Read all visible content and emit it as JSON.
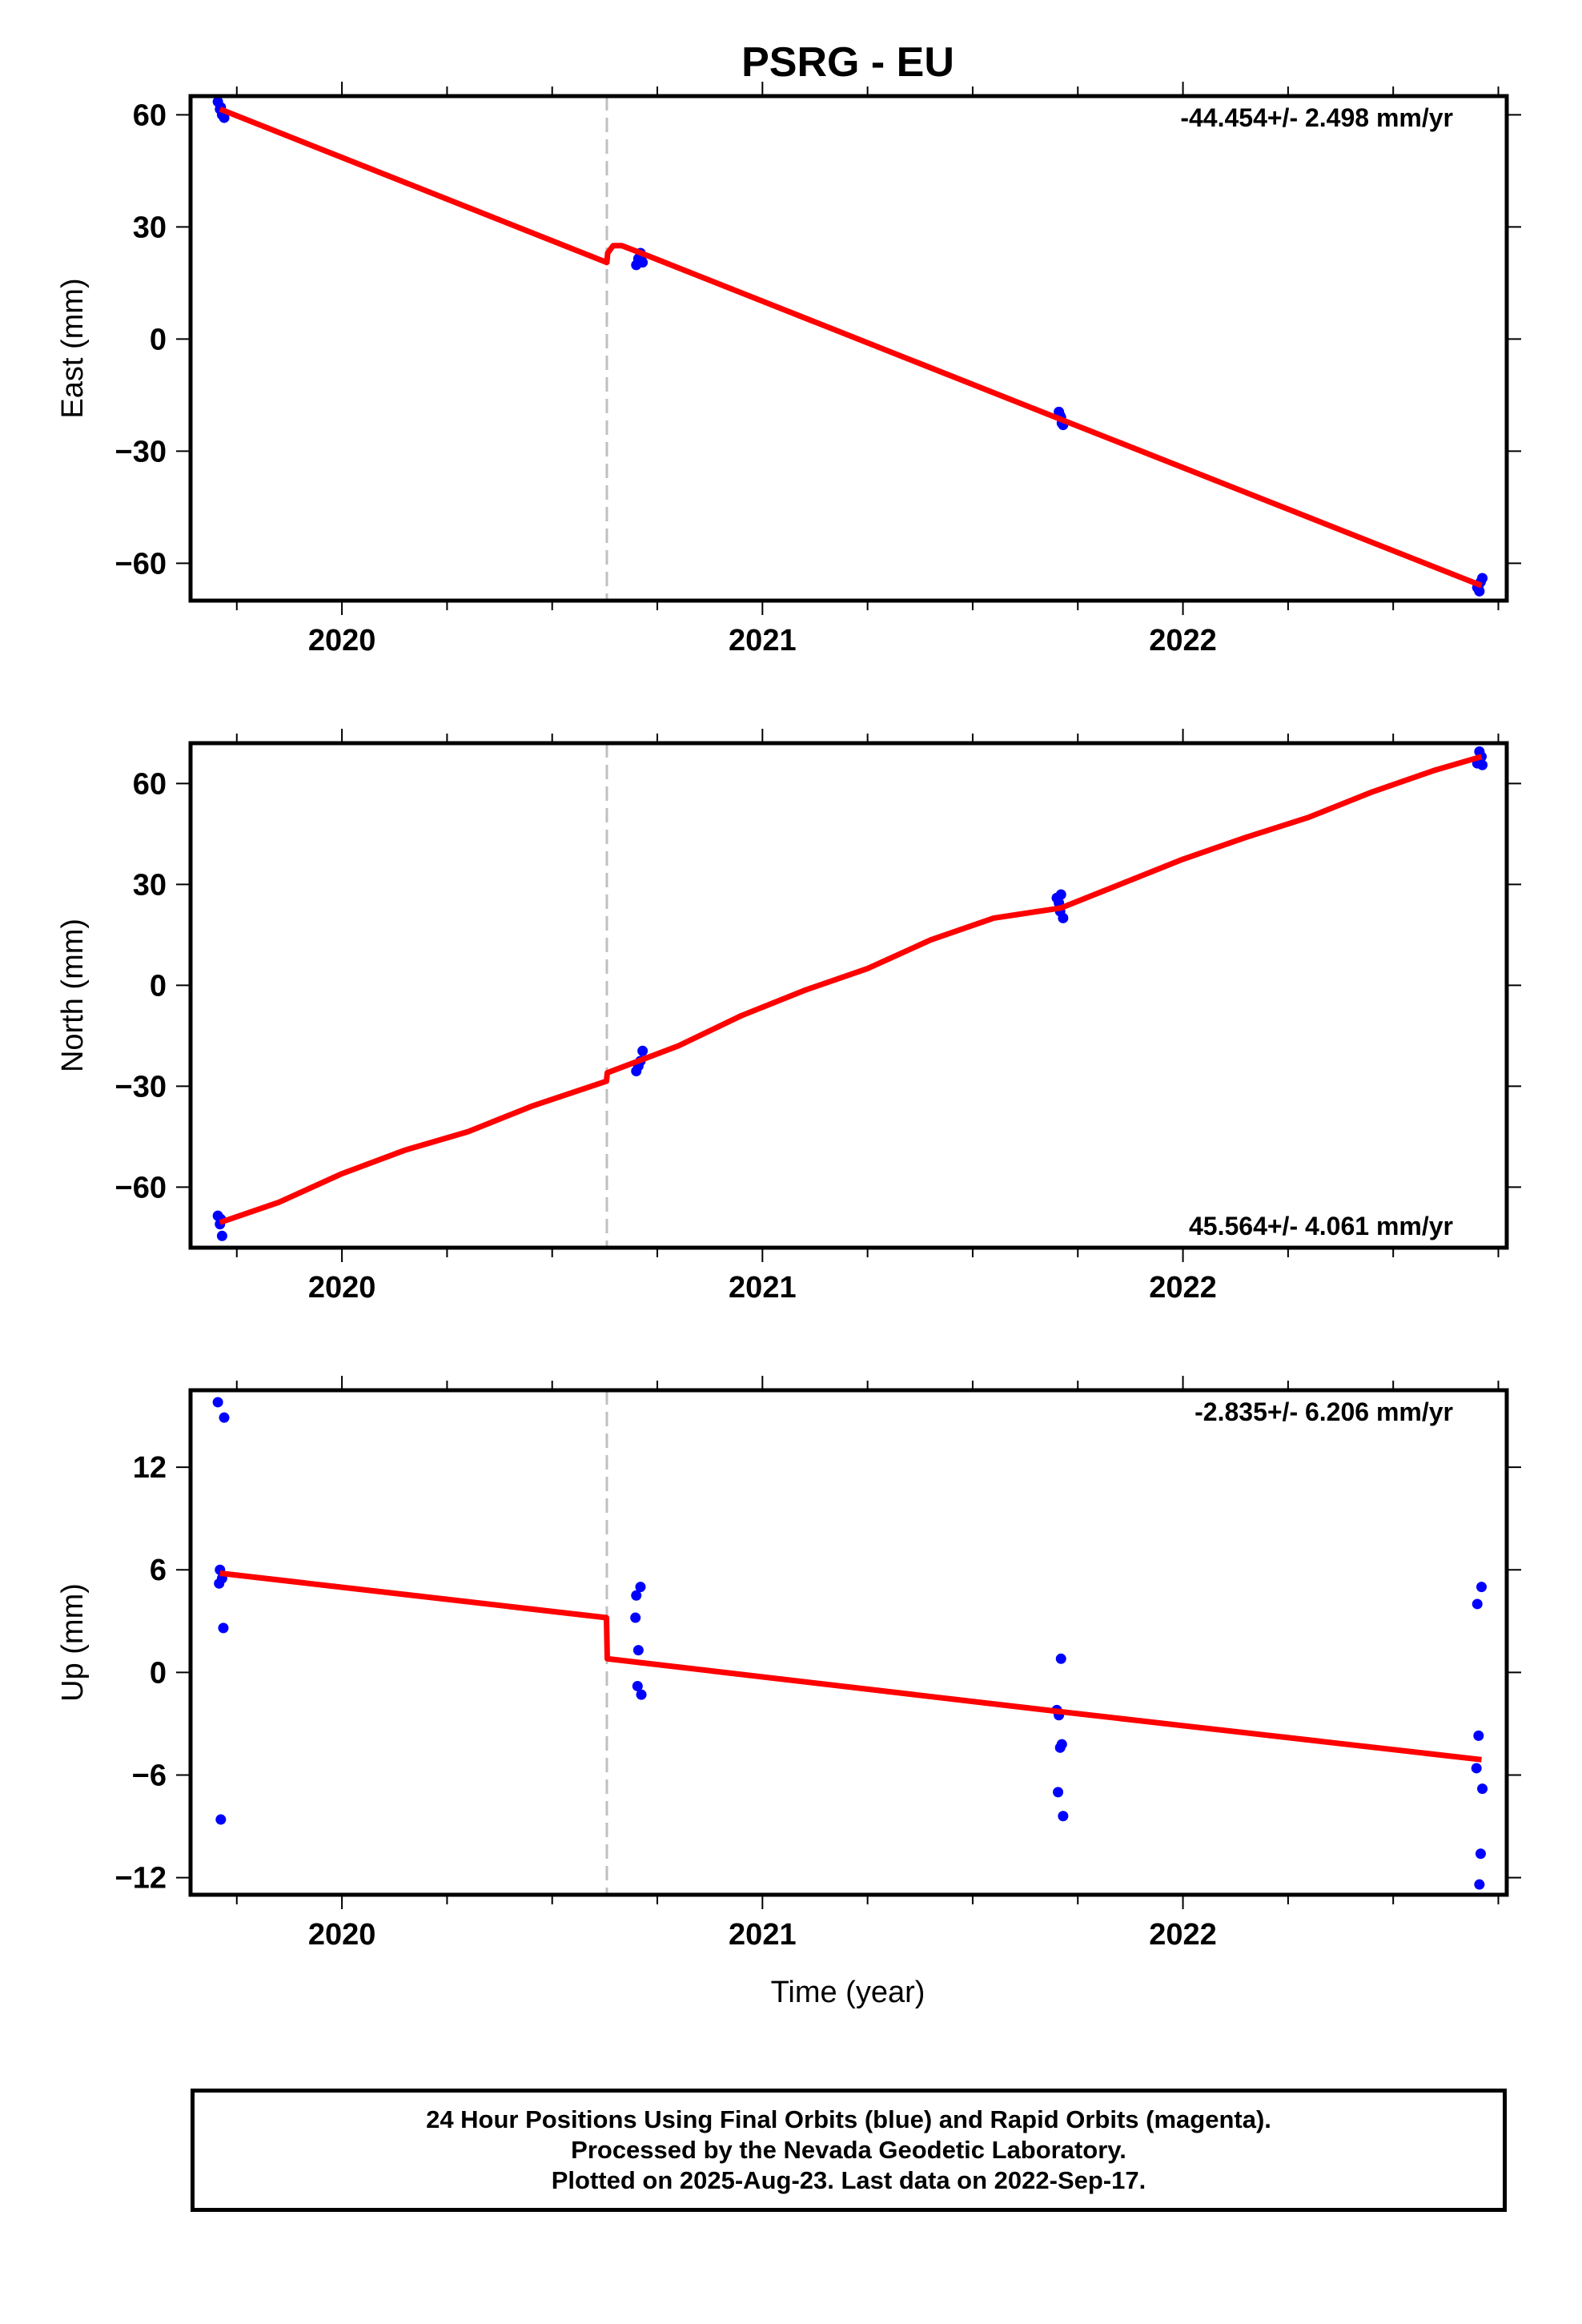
{
  "title": "PSRG - EU",
  "xlabel": "Time (year)",
  "colors": {
    "final_orbits": "#0000ff",
    "model": "#ff0000",
    "offset_line": "#bfbfbf"
  },
  "footer": {
    "line1": "24 Hour Positions Using Final Orbits (blue) and Rapid Orbits (magenta).",
    "line2": "Processed by the Nevada Geodetic Laboratory.",
    "line3": "Plotted on 2025-Aug-23. Last data on 2022-Sep-17."
  },
  "chart_data": [
    {
      "type": "scatter",
      "name": "east",
      "ylabel": "East (mm)",
      "rate_label": "-44.454+/- 2.498 mm/yr",
      "rate_position": "top-right",
      "xlim": [
        2019.64,
        2022.77
      ],
      "ylim": [
        -70,
        65
      ],
      "xticks": [
        2020,
        2021,
        2022
      ],
      "xtick_labels": [
        "2020",
        "2021",
        "2022"
      ],
      "yticks": [
        -60,
        -30,
        0,
        30,
        60
      ],
      "ytick_labels": [
        "−60",
        "−30",
        "0",
        "30",
        "60"
      ],
      "offset_epoch": 2020.63,
      "points": [
        [
          2019.705,
          63.5
        ],
        [
          2019.71,
          61.5
        ],
        [
          2019.715,
          60.0
        ],
        [
          2019.72,
          59.2
        ],
        [
          2019.712,
          62.0
        ],
        [
          2020.7,
          19.8
        ],
        [
          2020.705,
          21.5
        ],
        [
          2020.71,
          23.0
        ],
        [
          2020.715,
          20.5
        ],
        [
          2020.712,
          22.0
        ],
        [
          2021.705,
          -19.5
        ],
        [
          2021.71,
          -21.0
        ],
        [
          2021.712,
          -22.5
        ],
        [
          2021.715,
          -23.0
        ],
        [
          2021.708,
          -20.5
        ],
        [
          2022.7,
          -66.5
        ],
        [
          2022.705,
          -67.5
        ],
        [
          2022.708,
          -65.0
        ],
        [
          2022.712,
          -64.0
        ],
        [
          2022.703,
          -66.0
        ]
      ],
      "model": [
        [
          2019.71,
          61.5
        ],
        [
          2020.63,
          20.5
        ],
        [
          2020.632,
          23.0
        ],
        [
          2020.645,
          25.0
        ],
        [
          2020.665,
          25.0
        ],
        [
          2020.7,
          23.5
        ],
        [
          2021.71,
          -21.5
        ],
        [
          2022.71,
          -66.0
        ]
      ]
    },
    {
      "type": "scatter",
      "name": "north",
      "ylabel": "North (mm)",
      "rate_label": "45.564+/- 4.061 mm/yr",
      "rate_position": "bottom-right",
      "xlim": [
        2019.64,
        2022.77
      ],
      "ylim": [
        -78,
        72
      ],
      "xticks": [
        2020,
        2021,
        2022
      ],
      "xtick_labels": [
        "2020",
        "2021",
        "2022"
      ],
      "yticks": [
        -60,
        -30,
        0,
        30,
        60
      ],
      "ytick_labels": [
        "−60",
        "−30",
        "0",
        "30",
        "60"
      ],
      "offset_epoch": 2020.63,
      "points": [
        [
          2019.705,
          -68.5
        ],
        [
          2019.71,
          -71.0
        ],
        [
          2019.712,
          -69.5
        ],
        [
          2019.715,
          -74.5
        ],
        [
          2020.7,
          -25.5
        ],
        [
          2020.705,
          -24.0
        ],
        [
          2020.71,
          -22.5
        ],
        [
          2020.715,
          -19.5
        ],
        [
          2021.7,
          26.0
        ],
        [
          2021.705,
          24.5
        ],
        [
          2021.71,
          27.0
        ],
        [
          2021.715,
          20.0
        ],
        [
          2021.708,
          22.0
        ],
        [
          2022.705,
          69.5
        ],
        [
          2022.7,
          66.0
        ],
        [
          2022.71,
          68.0
        ],
        [
          2022.712,
          65.5
        ]
      ],
      "model": [
        [
          2019.71,
          -70.5
        ],
        [
          2019.85,
          -64.5
        ],
        [
          2020.0,
          -56.0
        ],
        [
          2020.15,
          -49.0
        ],
        [
          2020.3,
          -43.5
        ],
        [
          2020.45,
          -36.0
        ],
        [
          2020.629,
          -28.5
        ],
        [
          2020.631,
          -26.0
        ],
        [
          2020.8,
          -18.0
        ],
        [
          2020.95,
          -9.0
        ],
        [
          2021.1,
          -1.5
        ],
        [
          2021.25,
          5.0
        ],
        [
          2021.4,
          13.5
        ],
        [
          2021.55,
          20.0
        ],
        [
          2021.71,
          23.0
        ],
        [
          2021.85,
          30.0
        ],
        [
          2022.0,
          37.5
        ],
        [
          2022.15,
          44.0
        ],
        [
          2022.3,
          50.0
        ],
        [
          2022.45,
          57.5
        ],
        [
          2022.6,
          64.0
        ],
        [
          2022.71,
          68.0
        ]
      ]
    },
    {
      "type": "scatter",
      "name": "up",
      "ylabel": "Up (mm)",
      "rate_label": "-2.835+/- 6.206 mm/yr",
      "rate_position": "top-right",
      "xlim": [
        2019.64,
        2022.77
      ],
      "ylim": [
        -13,
        16.5
      ],
      "xticks": [
        2020,
        2021,
        2022
      ],
      "xtick_labels": [
        "2020",
        "2021",
        "2022"
      ],
      "yticks": [
        -12,
        -6,
        0,
        6,
        12
      ],
      "ytick_labels": [
        "−12",
        "−6",
        "0",
        "6",
        "12"
      ],
      "offset_epoch": 2020.63,
      "points": [
        [
          2019.705,
          15.8
        ],
        [
          2019.72,
          14.9
        ],
        [
          2019.71,
          6.0
        ],
        [
          2019.715,
          5.5
        ],
        [
          2019.708,
          5.2
        ],
        [
          2019.718,
          2.6
        ],
        [
          2019.712,
          -8.6
        ],
        [
          2020.7,
          4.5
        ],
        [
          2020.71,
          5.0
        ],
        [
          2020.698,
          3.2
        ],
        [
          2020.705,
          1.3
        ],
        [
          2020.703,
          -0.8
        ],
        [
          2020.712,
          -1.3
        ],
        [
          2021.71,
          0.8
        ],
        [
          2021.7,
          -2.2
        ],
        [
          2021.705,
          -2.5
        ],
        [
          2021.712,
          -4.2
        ],
        [
          2021.708,
          -4.4
        ],
        [
          2021.703,
          -7.0
        ],
        [
          2021.715,
          -8.4
        ],
        [
          2022.7,
          4.0
        ],
        [
          2022.71,
          5.0
        ],
        [
          2022.703,
          -3.7
        ],
        [
          2022.698,
          -5.6
        ],
        [
          2022.712,
          -6.8
        ],
        [
          2022.708,
          -10.6
        ],
        [
          2022.705,
          -12.4
        ]
      ],
      "model": [
        [
          2019.71,
          5.8
        ],
        [
          2020.629,
          3.2
        ],
        [
          2020.631,
          0.8
        ],
        [
          2021.71,
          -2.3
        ],
        [
          2022.71,
          -5.1
        ]
      ]
    }
  ]
}
